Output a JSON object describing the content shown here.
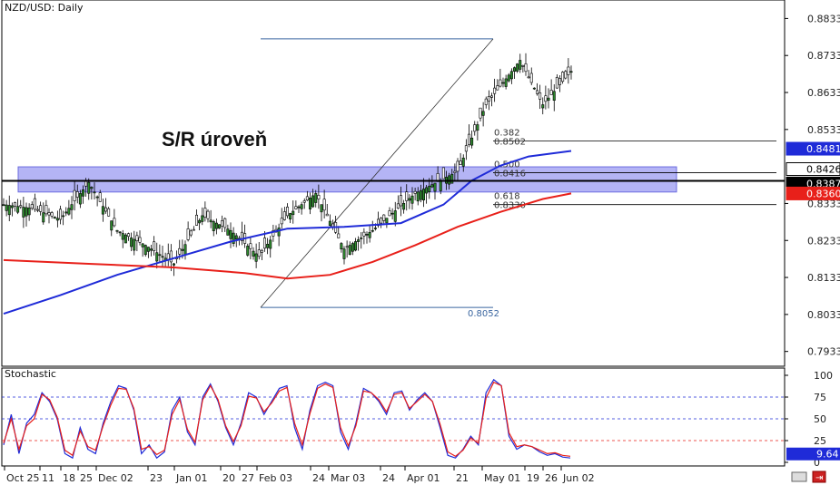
{
  "chart_data": {
    "type": "candlestick",
    "title": "NZD/USD: Daily",
    "annotation": "S/R úroveň",
    "price_axis": {
      "ylim": [
        0.7893,
        0.8883
      ],
      "ticks": [
        "0.8833",
        "0.8733",
        "0.8633",
        "0.8533",
        "0.8333",
        "0.8233",
        "0.8133",
        "0.8033",
        "0.7933"
      ]
    },
    "date_axis": {
      "labels": [
        "Oct 25",
        "11",
        "18",
        "25",
        "Dec 02",
        "23",
        "Jan 01",
        "20",
        "27",
        "Feb 03",
        "24",
        "Mar 03",
        "24",
        "Apr 01",
        "21",
        "May 01",
        "19",
        "26",
        "Jun 02"
      ]
    },
    "price_tags": [
      {
        "value": "0.8481",
        "color": "#1f2bd8"
      },
      {
        "value": "0.8426",
        "color": "#ffffff"
      },
      {
        "value": "0.8387",
        "color": "#000000"
      },
      {
        "value": "0.8360",
        "color": "#e8201a"
      }
    ],
    "sr_zone": {
      "low": 0.8364,
      "high": 0.8432,
      "color": "#8c8cf0"
    },
    "sr_line": 0.8394,
    "fibonacci": {
      "high": 0.8778,
      "low": 0.8052,
      "levels": [
        {
          "ratio": "0.382",
          "price": "0.8502"
        },
        {
          "ratio": "0.500",
          "price": "0.8416"
        },
        {
          "ratio": "0.618",
          "price": "0.8330"
        }
      ],
      "low_label": "0.8052"
    },
    "series": [
      {
        "name": "",
        "color": "#1f2bd8",
        "x": [
          0,
          20,
          40,
          60,
          80,
          100,
          120,
          140,
          155,
          165,
          175,
          185,
          200
        ],
        "y": [
          0.8035,
          0.8085,
          0.814,
          0.8185,
          0.823,
          0.8265,
          0.827,
          0.828,
          0.833,
          0.8395,
          0.8435,
          0.846,
          0.8475
        ]
      },
      {
        "name": "",
        "color": "#e8201a",
        "x": [
          0,
          30,
          60,
          85,
          100,
          115,
          130,
          145,
          160,
          175,
          190,
          200
        ],
        "y": [
          0.818,
          0.817,
          0.816,
          0.8145,
          0.813,
          0.814,
          0.8175,
          0.822,
          0.827,
          0.831,
          0.8345,
          0.836
        ]
      }
    ],
    "stochastic": {
      "label": "Stochastic",
      "ylim": [
        0,
        100
      ],
      "ticks": [
        "100",
        "75",
        "50",
        "25",
        "0"
      ],
      "levels": [
        75,
        50,
        25
      ],
      "value_tag": "9.64",
      "k": [
        20,
        55,
        10,
        45,
        55,
        80,
        70,
        50,
        10,
        5,
        40,
        15,
        10,
        45,
        70,
        88,
        85,
        60,
        10,
        20,
        5,
        12,
        60,
        75,
        35,
        20,
        75,
        90,
        70,
        40,
        20,
        45,
        80,
        75,
        55,
        70,
        85,
        88,
        40,
        15,
        60,
        88,
        92,
        88,
        35,
        15,
        45,
        85,
        80,
        70,
        55,
        80,
        82,
        60,
        72,
        80,
        70,
        40,
        8,
        5,
        15,
        30,
        20,
        80,
        95,
        88,
        30,
        15,
        20,
        18,
        12,
        8,
        10,
        6,
        5
      ],
      "d": [
        22,
        50,
        15,
        42,
        50,
        78,
        72,
        52,
        14,
        8,
        36,
        18,
        14,
        42,
        66,
        85,
        84,
        62,
        15,
        18,
        9,
        14,
        55,
        72,
        38,
        23,
        72,
        88,
        72,
        42,
        24,
        42,
        76,
        74,
        58,
        68,
        82,
        86,
        45,
        20,
        56,
        85,
        90,
        86,
        40,
        19,
        42,
        82,
        80,
        72,
        58,
        78,
        80,
        62,
        70,
        78,
        70,
        44,
        12,
        7,
        14,
        28,
        22,
        74,
        92,
        88,
        34,
        18,
        20,
        18,
        14,
        10,
        11,
        8,
        7
      ]
    }
  }
}
